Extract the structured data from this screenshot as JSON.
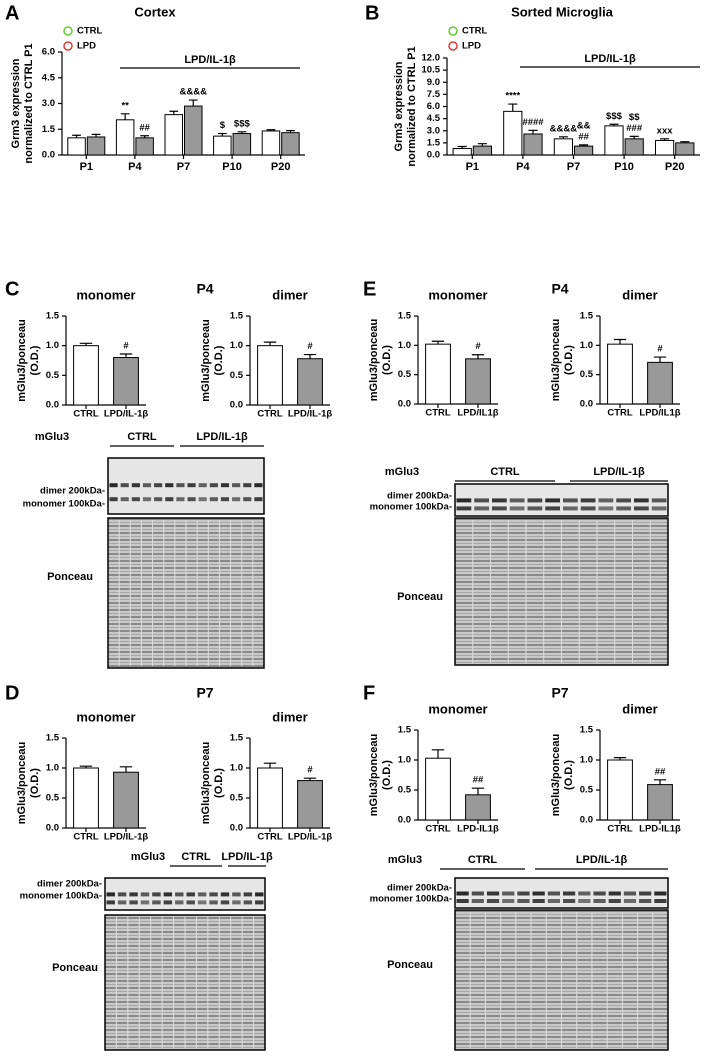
{
  "chart_data": [
    {
      "type": "bar",
      "title": "Cortex",
      "ylabel": [
        "Grm3 expression",
        "normalized to CTRL P1"
      ],
      "bracket_label": "LPD/IL-1β",
      "categories": [
        "P1",
        "P4",
        "P7",
        "P10",
        "P20"
      ],
      "series": [
        {
          "name": "CTRL",
          "color": "#ffffff",
          "dot_color": "#66cc33",
          "values": [
            1.0,
            2.05,
            2.35,
            1.1,
            1.4
          ],
          "errors": [
            0.15,
            0.35,
            0.2,
            0.15,
            0.07
          ],
          "annotations": [
            null,
            "**",
            null,
            "$",
            null
          ]
        },
        {
          "name": "LPD",
          "color": "#999999",
          "dot_color": "#e03a3a",
          "values": [
            1.05,
            1.0,
            2.85,
            1.25,
            1.3
          ],
          "errors": [
            0.15,
            0.12,
            0.35,
            0.1,
            0.12
          ],
          "annotations": [
            null,
            "##",
            "&&&&",
            "$$$",
            null
          ]
        }
      ],
      "ylim": [
        0,
        6
      ],
      "yticks": [
        {
          "value": 0,
          "label": "0.0"
        },
        1.5,
        {
          "value": 3,
          "label": "3.0"
        },
        4.5,
        {
          "value": 6,
          "label": "6.0"
        }
      ]
    },
    {
      "type": "bar",
      "title": "Sorted Microglia",
      "ylabel": [
        "Grm3 expression",
        "normalized to CTRL P1"
      ],
      "bracket_label": "LPD/IL-1β",
      "categories": [
        "P1",
        "P4",
        "P7",
        "P10",
        "P20"
      ],
      "series": [
        {
          "name": "CTRL",
          "color": "#ffffff",
          "dot_color": "#66cc33",
          "values": [
            0.8,
            5.4,
            2.0,
            3.6,
            1.8
          ],
          "errors": [
            0.25,
            0.9,
            0.25,
            0.2,
            0.2
          ],
          "annotations": [
            null,
            "****",
            "&&&&",
            "$$$",
            "xxx"
          ]
        },
        {
          "name": "LPD",
          "color": "#999999",
          "dot_color": "#e03a3a",
          "values": [
            1.1,
            2.6,
            1.1,
            2.0,
            1.5
          ],
          "errors": [
            0.3,
            0.45,
            0.15,
            0.3,
            0.15
          ],
          "annotations": [
            null,
            "####",
            [
              "&&",
              "##"
            ],
            [
              "$$",
              "###"
            ],
            null
          ]
        }
      ],
      "ylim": [
        0,
        12
      ],
      "yticks": [
        {
          "value": 0,
          "label": "0.0"
        },
        1.5,
        {
          "value": 3,
          "label": "3.0"
        },
        4.5,
        {
          "value": 6,
          "label": "6.0"
        },
        7.5,
        {
          "value": 9,
          "label": "9.0"
        },
        10.5,
        {
          "value": 12,
          "label": "12.0"
        }
      ]
    },
    {
      "type": "bar",
      "title": "monomer",
      "ylabel": [
        "mGlu3/ponceau",
        "(O.D.)"
      ],
      "categories": [
        "CTRL",
        "LPD/IL-1β"
      ],
      "values": [
        1.0,
        0.8
      ],
      "errors": [
        0.04,
        0.06
      ],
      "colors": [
        "#ffffff",
        "#999999"
      ],
      "dot_colors": [
        "#66cc33",
        "#e03a3a"
      ],
      "annotations": [
        null,
        "#"
      ],
      "ylim": [
        0,
        1.5
      ],
      "yticks": [
        {
          "value": 0,
          "label": "0.0"
        },
        0.5,
        {
          "value": 1,
          "label": "1.0"
        },
        1.5
      ]
    },
    {
      "type": "bar",
      "title": "dimer",
      "ylabel": [
        "mGlu3/ponceau",
        "(O.D.)"
      ],
      "categories": [
        "CTRL",
        "LPD/IL-1β"
      ],
      "values": [
        1.0,
        0.78
      ],
      "errors": [
        0.06,
        0.07
      ],
      "colors": [
        "#ffffff",
        "#999999"
      ],
      "dot_colors": [
        "#66cc33",
        "#e03a3a"
      ],
      "annotations": [
        null,
        "#"
      ],
      "ylim": [
        0,
        1.5
      ],
      "yticks": [
        {
          "value": 0,
          "label": "0.0"
        },
        0.5,
        {
          "value": 1,
          "label": "1.0"
        },
        1.5
      ]
    },
    {
      "type": "bar",
      "title": "monomer",
      "ylabel": [
        "mGlu3/ponceau",
        "(O.D.)"
      ],
      "categories": [
        "CTRL",
        "LPD/IL1β"
      ],
      "values": [
        1.02,
        0.77
      ],
      "errors": [
        0.05,
        0.07
      ],
      "colors": [
        "#ffffff",
        "#999999"
      ],
      "dot_colors": [
        "#66cc33",
        "#e03a3a"
      ],
      "annotations": [
        null,
        "#"
      ],
      "ylim": [
        0,
        1.5
      ],
      "yticks": [
        {
          "value": 0,
          "label": "0.0"
        },
        0.5,
        {
          "value": 1,
          "label": "1.0"
        },
        1.5
      ]
    },
    {
      "type": "bar",
      "title": "dimer",
      "ylabel": [
        "mGlu3/ponceau",
        "(O.D.)"
      ],
      "categories": [
        "CTRL",
        "LPD/IL1β"
      ],
      "values": [
        1.02,
        0.71
      ],
      "errors": [
        0.08,
        0.09
      ],
      "colors": [
        "#ffffff",
        "#999999"
      ],
      "dot_colors": [
        "#66cc33",
        "#e03a3a"
      ],
      "annotations": [
        null,
        "#"
      ],
      "ylim": [
        0,
        1.5
      ],
      "yticks": [
        {
          "value": 0,
          "label": "0.0"
        },
        0.5,
        {
          "value": 1,
          "label": "1.0"
        },
        1.5
      ]
    },
    {
      "type": "bar",
      "title": "monomer",
      "ylabel": [
        "mGlu3/ponceau",
        "(O.D.)"
      ],
      "categories": [
        "CTRL",
        "LPD/IL-1β"
      ],
      "values": [
        1.0,
        0.93
      ],
      "errors": [
        0.03,
        0.09
      ],
      "colors": [
        "#ffffff",
        "#999999"
      ],
      "dot_colors": [
        "#66cc33",
        "#e03a3a"
      ],
      "annotations": [
        null,
        null
      ],
      "ylim": [
        0,
        1.5
      ],
      "yticks": [
        {
          "value": 0,
          "label": "0.0"
        },
        0.5,
        {
          "value": 1,
          "label": "1.0"
        },
        1.5
      ]
    },
    {
      "type": "bar",
      "title": "dimer",
      "ylabel": [
        "mGlu3/ponceau",
        "(O.D.)"
      ],
      "categories": [
        "CTRL",
        "LPD/IL-1β"
      ],
      "values": [
        1.0,
        0.79
      ],
      "errors": [
        0.08,
        0.04
      ],
      "colors": [
        "#ffffff",
        "#999999"
      ],
      "dot_colors": [
        "#66cc33",
        "#e03a3a"
      ],
      "annotations": [
        null,
        "#"
      ],
      "ylim": [
        0,
        1.5
      ],
      "yticks": [
        {
          "value": 0,
          "label": "0.0"
        },
        0.5,
        {
          "value": 1,
          "label": "1.0"
        },
        1.5
      ]
    },
    {
      "type": "bar",
      "title": "monomer",
      "ylabel": [
        "mGlu3/ponceau",
        "(O.D.)"
      ],
      "categories": [
        "CTRL",
        "LPD-IL1β"
      ],
      "values": [
        1.03,
        0.42
      ],
      "errors": [
        0.14,
        0.11
      ],
      "colors": [
        "#ffffff",
        "#999999"
      ],
      "dot_colors": [
        "#66cc33",
        "#e03a3a"
      ],
      "annotations": [
        null,
        "##"
      ],
      "ylim": [
        0,
        1.5
      ],
      "yticks": [
        {
          "value": 0,
          "label": "0.0"
        },
        0.5,
        {
          "value": 1,
          "label": "1.0"
        },
        1.5
      ]
    },
    {
      "type": "bar",
      "title": "dimer",
      "ylabel": [
        "mGlu3/ponceau",
        "(O.D.)"
      ],
      "categories": [
        "CTRL",
        "LPD-IL1β"
      ],
      "values": [
        1.0,
        0.59
      ],
      "errors": [
        0.04,
        0.08
      ],
      "colors": [
        "#ffffff",
        "#999999"
      ],
      "dot_colors": [
        "#66cc33",
        "#e03a3a"
      ],
      "annotations": [
        null,
        "##"
      ],
      "ylim": [
        0,
        1.5
      ],
      "yticks": [
        {
          "value": 0,
          "label": "0.0"
        },
        0.5,
        {
          "value": 1,
          "label": "1.0"
        },
        1.5
      ]
    }
  ],
  "panels": [
    {
      "letter": "A"
    },
    {
      "letter": "B"
    },
    {
      "letter": "C",
      "title": "P4",
      "blot": {
        "marker": "mGlu3",
        "groups": [
          "CTRL",
          "LPD/IL-1β"
        ],
        "bands": [
          "dimer 200kDa-",
          "monomer 100kDa-"
        ],
        "stain": "Ponceau"
      }
    },
    {
      "letter": "E",
      "title": "P4",
      "blot": {
        "marker": "mGlu3",
        "groups": [
          "CTRL",
          "LPD/IL-1β"
        ],
        "bands": [
          "dimer 200kDa-",
          "monomer 100kDa-"
        ],
        "stain": "Ponceau"
      }
    },
    {
      "letter": "D",
      "title": "P7",
      "blot": {
        "marker": "mGlu3",
        "groups": [
          "CTRL",
          "LPD/IL-1β"
        ],
        "bands": [
          "dimer 200kDa-",
          "monomer 100kDa-"
        ],
        "stain": "Ponceau"
      }
    },
    {
      "letter": "F",
      "title": "P7",
      "blot": {
        "marker": "mGlu3",
        "groups": [
          "CTRL",
          "LPD/IL-1β"
        ],
        "bands": [
          "dimer 200kDa-",
          "monomer 100kDa-"
        ],
        "stain": "Ponceau"
      }
    }
  ]
}
